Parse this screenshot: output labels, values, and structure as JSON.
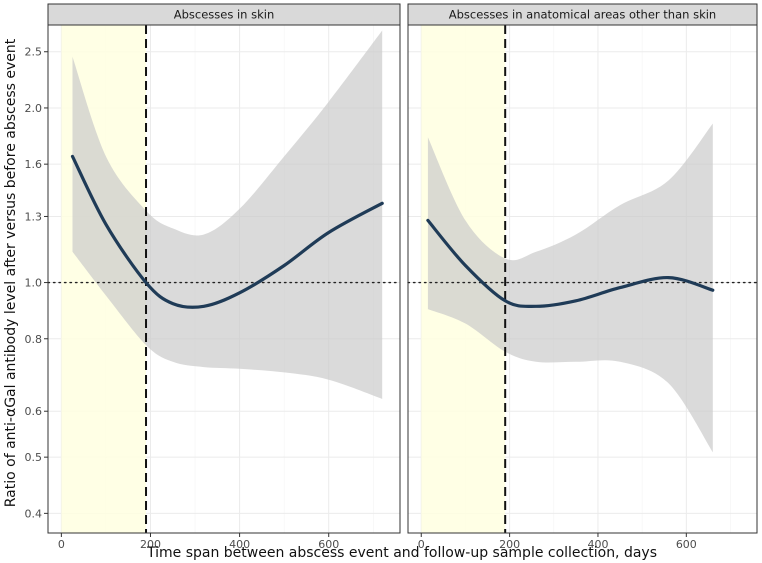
{
  "chart_data": {
    "type": "line",
    "y_scale": "log",
    "ylabel": "Ratio of anti-αGal antibody level after versus before abscess event",
    "xlabel": "Time span between abscess event and follow-up sample collection, days",
    "xlim": [
      -30,
      760
    ],
    "ylim": [
      0.37,
      2.78
    ],
    "x_ticks": [
      0,
      200,
      400,
      600
    ],
    "y_ticks": [
      0.4,
      0.5,
      0.6,
      0.8,
      1.0,
      1.3,
      1.6,
      2.0,
      2.5
    ],
    "y_tick_labels": [
      "0.4",
      "0.5",
      "0.6",
      "0.8",
      "1.0",
      "1.3",
      "1.6",
      "2.0",
      "2.5"
    ],
    "reference_line": {
      "y": 1.0,
      "style": "dotted"
    },
    "cutoff_line": {
      "x": 190,
      "style": "dashed"
    },
    "highlight_band": {
      "x0": 0,
      "x1": 190,
      "color": "#ffffe0"
    },
    "colors": {
      "line": "#1f3b57",
      "ribbon": "#c8c8c8",
      "panel_border": "#333333",
      "strip_bg": "#d9d9d9",
      "grid": "#ebebeb"
    },
    "panels": [
      {
        "title": "Abscesses in skin",
        "x": [
          25,
          100,
          190,
          250,
          320,
          400,
          500,
          600,
          720
        ],
        "fit": [
          1.65,
          1.26,
          1.0,
          0.92,
          0.91,
          0.96,
          1.07,
          1.22,
          1.37
        ],
        "lower": [
          1.13,
          0.95,
          0.78,
          0.73,
          0.715,
          0.71,
          0.7,
          0.68,
          0.63
        ],
        "upper": [
          2.45,
          1.65,
          1.33,
          1.24,
          1.21,
          1.34,
          1.65,
          2.05,
          2.72
        ]
      },
      {
        "title": "Abscesses in anatomical areas other than skin",
        "x": [
          15,
          100,
          190,
          260,
          350,
          450,
          560,
          660
        ],
        "fit": [
          1.28,
          1.07,
          0.93,
          0.91,
          0.93,
          0.98,
          1.02,
          0.97
        ],
        "lower": [
          0.9,
          0.85,
          0.76,
          0.73,
          0.73,
          0.73,
          0.67,
          0.51
        ],
        "upper": [
          1.78,
          1.28,
          1.1,
          1.13,
          1.21,
          1.36,
          1.5,
          1.88
        ]
      }
    ]
  }
}
